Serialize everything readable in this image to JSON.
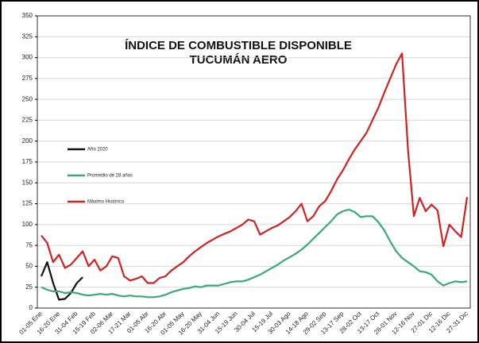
{
  "chart_data": {
    "type": "line",
    "title": [
      "ÍNDICE DE COMBUSTIBLE DISPONIBLE",
      "TUCUMÁN AERO"
    ],
    "categories": [
      "01-05 Ene",
      null,
      null,
      "16-20 Ene",
      null,
      null,
      "31-04 Feb",
      null,
      null,
      "15-19 Feb",
      null,
      null,
      "02-06 Mar",
      null,
      null,
      "17-21 Mar",
      null,
      null,
      "01-05 Abr",
      null,
      null,
      "16-20 Abr",
      null,
      null,
      "01-05 May",
      null,
      null,
      "16-20 May",
      null,
      null,
      "31-04 Jun",
      null,
      null,
      "15-19 Jun",
      null,
      null,
      "30-04 Jul",
      null,
      null,
      "15-19 Jul",
      null,
      null,
      "30-03 Ago",
      null,
      null,
      "14-18 Ago",
      null,
      null,
      "29-02 Sep",
      null,
      null,
      "13-17 Sep",
      null,
      null,
      "28-02 Oct",
      null,
      null,
      "13-17 Oct",
      null,
      null,
      "28-01 Nov",
      null,
      null,
      "12-16 Nov",
      null,
      null,
      "27-01 Dic",
      null,
      null,
      "12-16 Dic",
      null,
      null,
      "27-31 Dic"
    ],
    "series": [
      {
        "name": "Año 2020",
        "color": "#111111",
        "values": [
          38,
          55,
          30,
          10,
          11,
          18,
          30,
          37,
          null,
          null,
          null,
          null,
          null,
          null,
          null,
          null,
          null,
          null,
          null,
          null,
          null,
          null,
          null,
          null,
          null,
          null,
          null,
          null,
          null,
          null,
          null,
          null,
          null,
          null,
          null,
          null,
          null,
          null,
          null,
          null,
          null,
          null,
          null,
          null,
          null,
          null,
          null,
          null,
          null,
          null,
          null,
          null,
          null,
          null,
          null,
          null,
          null,
          null,
          null,
          null,
          null,
          null,
          null,
          null,
          null,
          null,
          null,
          null,
          null,
          null,
          null,
          null,
          null
        ]
      },
      {
        "name": "Promedio de 28 años",
        "color": "#3aa878",
        "values": [
          25,
          22,
          20,
          20,
          18,
          19,
          18,
          16,
          15,
          16,
          17,
          16,
          17,
          15,
          14,
          15,
          14,
          14,
          13,
          13,
          14,
          16,
          19,
          21,
          23,
          24,
          26,
          25,
          27,
          27,
          27,
          29,
          31,
          32,
          32,
          34,
          37,
          40,
          44,
          48,
          52,
          57,
          61,
          65,
          70,
          76,
          83,
          90,
          97,
          104,
          112,
          116,
          118,
          115,
          109,
          110,
          110,
          103,
          93,
          80,
          68,
          60,
          55,
          50,
          44,
          43,
          40,
          32,
          27,
          30,
          32,
          31,
          32
        ]
      },
      {
        "name": "Máximo Histórico",
        "color": "#d42020",
        "values": [
          87,
          78,
          55,
          64,
          48,
          52,
          60,
          68,
          50,
          58,
          45,
          50,
          62,
          60,
          38,
          33,
          35,
          38,
          30,
          30,
          36,
          38,
          45,
          50,
          55,
          62,
          68,
          73,
          78,
          82,
          86,
          89,
          92,
          96,
          100,
          106,
          104,
          88,
          92,
          96,
          99,
          104,
          109,
          116,
          125,
          104,
          110,
          122,
          128,
          140,
          154,
          165,
          178,
          190,
          200,
          210,
          225,
          240,
          258,
          275,
          292,
          305,
          190,
          110,
          132,
          116,
          124,
          117,
          74,
          100,
          92,
          85,
          133
        ]
      }
    ],
    "ylim": [
      0,
      350
    ],
    "yticks": [
      0,
      25,
      50,
      75,
      100,
      125,
      150,
      175,
      200,
      225,
      250,
      275,
      300,
      325,
      350
    ],
    "grid": true,
    "legend": "left"
  }
}
